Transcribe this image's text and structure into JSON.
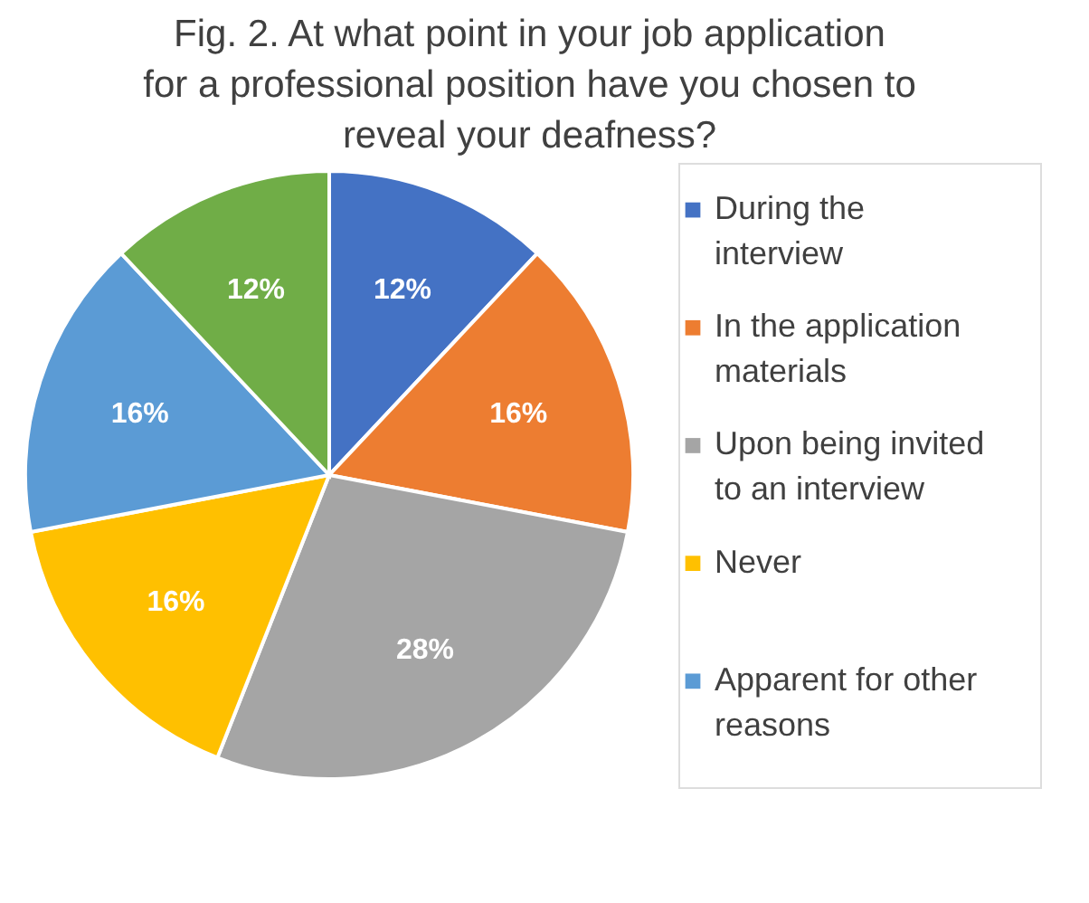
{
  "chart_data": {
    "type": "pie",
    "title": [
      "Fig. 2. At what point in your job application",
      "for a professional position have you chosen to",
      "reveal your deafness?"
    ],
    "categories": [
      "During the interview",
      "In the application materials",
      "Upon being invited to an interview",
      "Never",
      "Apparent for other reasons",
      null
    ],
    "values": [
      12,
      16,
      28,
      16,
      16,
      12
    ],
    "colors": [
      "#4472c4",
      "#ed7d31",
      "#a5a5a5",
      "#ffc000",
      "#5b9bd5",
      "#70ad47"
    ],
    "value_labels": [
      "12%",
      "16%",
      "28%",
      "16%",
      "16%",
      "12%"
    ],
    "legend": "right"
  }
}
